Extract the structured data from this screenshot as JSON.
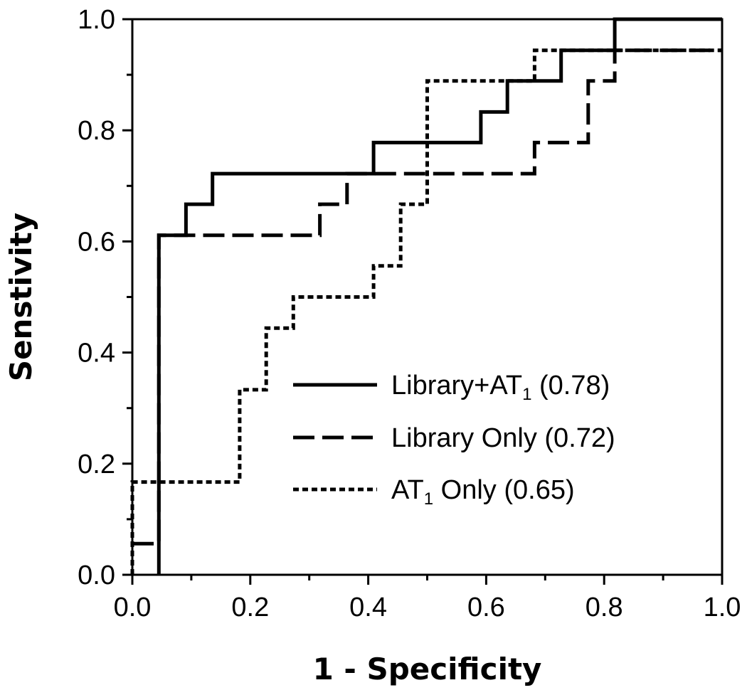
{
  "chart_data": {
    "type": "line",
    "title": "",
    "xlabel": "1 - Specificity",
    "ylabel": "Senstivity",
    "xlim": [
      0,
      1
    ],
    "ylim": [
      0,
      1
    ],
    "x_ticks": [
      "0.0",
      "0.2",
      "0.4",
      "0.6",
      "0.8",
      "1.0"
    ],
    "y_ticks": [
      "0.0",
      "0.2",
      "0.4",
      "0.6",
      "0.8",
      "1.0"
    ],
    "grid": false,
    "legend_position": "lower-right",
    "series": [
      {
        "name_main": "Library+AT",
        "name_sub": "1",
        "name_tail": " (0.78)",
        "line_style": "solid",
        "color": "#000000",
        "points": [
          [
            0.045,
            0.0
          ],
          [
            0.045,
            0.611
          ],
          [
            0.091,
            0.611
          ],
          [
            0.091,
            0.667
          ],
          [
            0.136,
            0.667
          ],
          [
            0.136,
            0.722
          ],
          [
            0.409,
            0.722
          ],
          [
            0.409,
            0.778
          ],
          [
            0.591,
            0.778
          ],
          [
            0.591,
            0.833
          ],
          [
            0.636,
            0.833
          ],
          [
            0.636,
            0.889
          ],
          [
            0.727,
            0.889
          ],
          [
            0.727,
            0.944
          ],
          [
            0.818,
            0.944
          ],
          [
            0.818,
            1.0
          ],
          [
            1.0,
            1.0
          ]
        ]
      },
      {
        "name_main": "Library Only",
        "name_sub": "",
        "name_tail": " (0.72)",
        "line_style": "dashed",
        "color": "#000000",
        "points": [
          [
            0.0,
            0.056
          ],
          [
            0.045,
            0.056
          ],
          [
            0.045,
            0.611
          ],
          [
            0.318,
            0.611
          ],
          [
            0.318,
            0.667
          ],
          [
            0.364,
            0.667
          ],
          [
            0.364,
            0.722
          ],
          [
            0.682,
            0.722
          ],
          [
            0.682,
            0.778
          ],
          [
            0.773,
            0.778
          ],
          [
            0.773,
            0.889
          ],
          [
            0.818,
            0.889
          ],
          [
            0.818,
            0.944
          ],
          [
            1.0,
            0.944
          ]
        ]
      },
      {
        "name_main": "AT",
        "name_sub": "1",
        "name_tail": " Only (0.65)",
        "line_style": "dotted",
        "color": "#000000",
        "points": [
          [
            0.0,
            0.0
          ],
          [
            0.0,
            0.167
          ],
          [
            0.182,
            0.167
          ],
          [
            0.182,
            0.333
          ],
          [
            0.227,
            0.333
          ],
          [
            0.227,
            0.444
          ],
          [
            0.273,
            0.444
          ],
          [
            0.273,
            0.5
          ],
          [
            0.409,
            0.5
          ],
          [
            0.409,
            0.556
          ],
          [
            0.455,
            0.556
          ],
          [
            0.455,
            0.667
          ],
          [
            0.5,
            0.667
          ],
          [
            0.5,
            0.889
          ],
          [
            0.682,
            0.889
          ],
          [
            0.682,
            0.944
          ],
          [
            1.0,
            0.944
          ]
        ]
      }
    ]
  }
}
